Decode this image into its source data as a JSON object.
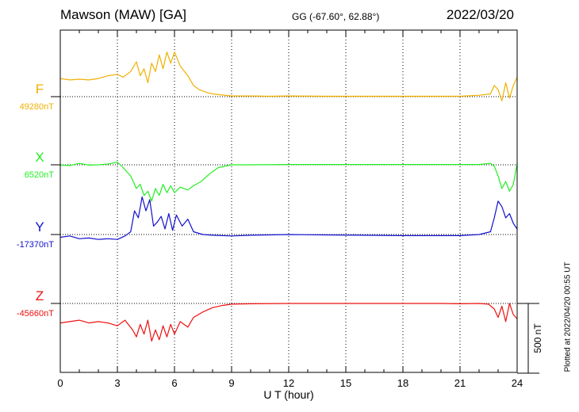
{
  "header": {
    "station": "Mawson (MAW)  [GA]",
    "coords": "GG (-67.60°,  62.88°)",
    "date": "2022/03/20"
  },
  "footer": {
    "plotted": "Plotted at 2022/04/20 00:55 UT"
  },
  "colors": {
    "F": "#f0b000",
    "X": "#22ee22",
    "Y": "#1010cc",
    "Z": "#ee1111"
  },
  "chart_data": {
    "type": "line",
    "xlabel": "U T (hour)",
    "xlim": [
      0,
      24
    ],
    "x_ticks": [
      "0",
      "3",
      "6",
      "9",
      "12",
      "15",
      "18",
      "21",
      "24"
    ],
    "scale_bar": {
      "label": "500 nT",
      "value_nT": 500
    },
    "series": [
      {
        "name": "F",
        "baseline_label": "49280nT",
        "baseline_nT": 49280,
        "x": [
          0,
          0.5,
          1,
          1.5,
          2,
          2.5,
          3,
          3.3,
          3.7,
          4,
          4.2,
          4.4,
          4.6,
          4.8,
          5,
          5.2,
          5.4,
          5.6,
          5.8,
          6,
          6.3,
          6.7,
          7,
          7.3,
          7.7,
          8,
          8.5,
          9,
          10,
          11,
          12,
          14,
          16,
          18,
          20,
          21,
          22,
          22.6,
          22.8,
          23,
          23.2,
          23.4,
          23.6,
          23.8,
          24
        ],
        "y": [
          49410,
          49400,
          49405,
          49400,
          49410,
          49430,
          49440,
          49420,
          49460,
          49530,
          49430,
          49480,
          49380,
          49520,
          49460,
          49580,
          49480,
          49600,
          49520,
          49600,
          49500,
          49430,
          49360,
          49330,
          49310,
          49300,
          49292,
          49285,
          49285,
          49283,
          49285,
          49283,
          49283,
          49283,
          49283,
          49283,
          49290,
          49300,
          49360,
          49330,
          49250,
          49380,
          49270,
          49360,
          49420
        ]
      },
      {
        "name": "X",
        "baseline_label": "6520nT",
        "baseline_nT": 6520,
        "x": [
          0,
          0.5,
          1,
          1.5,
          2,
          2.5,
          3,
          3.3,
          3.7,
          4,
          4.2,
          4.4,
          4.6,
          4.8,
          5,
          5.2,
          5.4,
          5.6,
          5.8,
          6,
          6.3,
          6.7,
          7,
          7.4,
          7.8,
          8.3,
          9,
          10,
          12,
          14,
          16,
          18,
          20,
          21,
          22,
          22.6,
          22.8,
          23,
          23.2,
          23.4,
          23.6,
          23.8,
          24
        ],
        "y": [
          6518,
          6515,
          6530,
          6518,
          6520,
          6525,
          6540,
          6500,
          6440,
          6350,
          6380,
          6300,
          6330,
          6260,
          6350,
          6300,
          6380,
          6320,
          6370,
          6320,
          6360,
          6340,
          6370,
          6400,
          6450,
          6500,
          6520,
          6520,
          6522,
          6522,
          6522,
          6522,
          6522,
          6522,
          6522,
          6530,
          6510,
          6440,
          6350,
          6400,
          6330,
          6380,
          6530
        ]
      },
      {
        "name": "Y",
        "baseline_label": "-17370nT",
        "baseline_nT": -17370,
        "x": [
          0,
          0.5,
          1,
          1.5,
          2,
          2.5,
          3,
          3.4,
          3.7,
          3.9,
          4.1,
          4.3,
          4.5,
          4.7,
          4.9,
          5.1,
          5.3,
          5.5,
          5.7,
          5.9,
          6.1,
          6.4,
          6.7,
          7,
          7.5,
          8,
          9,
          10,
          12,
          14,
          16,
          18,
          20,
          21,
          22,
          22.6,
          22.8,
          23,
          23.2,
          23.4,
          23.6,
          23.8,
          24
        ],
        "y": [
          -17390,
          -17380,
          -17400,
          -17395,
          -17405,
          -17400,
          -17405,
          -17380,
          -17350,
          -17200,
          -17250,
          -17100,
          -17200,
          -17120,
          -17310,
          -17280,
          -17240,
          -17330,
          -17220,
          -17340,
          -17230,
          -17310,
          -17260,
          -17350,
          -17370,
          -17375,
          -17380,
          -17375,
          -17370,
          -17373,
          -17375,
          -17378,
          -17378,
          -17378,
          -17370,
          -17350,
          -17250,
          -17130,
          -17170,
          -17250,
          -17220,
          -17290,
          -17330
        ]
      },
      {
        "name": "Z",
        "baseline_label": "-45660nT",
        "baseline_nT": -45660,
        "x": [
          0,
          0.5,
          1,
          1.5,
          2,
          2.5,
          3,
          3.4,
          3.8,
          4,
          4.2,
          4.4,
          4.6,
          4.8,
          5,
          5.2,
          5.4,
          5.6,
          5.8,
          6,
          6.3,
          6.7,
          7,
          7.5,
          8,
          8.5,
          9,
          10,
          12,
          14,
          16,
          18,
          20,
          21,
          22,
          22.5,
          22.8,
          23,
          23.2,
          23.4,
          23.6,
          23.8,
          24
        ],
        "y": [
          -45800,
          -45790,
          -45780,
          -45800,
          -45790,
          -45800,
          -45820,
          -45780,
          -45850,
          -45900,
          -45810,
          -45880,
          -45780,
          -45930,
          -45850,
          -45920,
          -45820,
          -45900,
          -45810,
          -45880,
          -45790,
          -45830,
          -45760,
          -45720,
          -45690,
          -45675,
          -45665,
          -45662,
          -45660,
          -45660,
          -45660,
          -45660,
          -45660,
          -45662,
          -45660,
          -45665,
          -45700,
          -45760,
          -45680,
          -45790,
          -45660,
          -45740,
          -45770
        ]
      }
    ]
  }
}
